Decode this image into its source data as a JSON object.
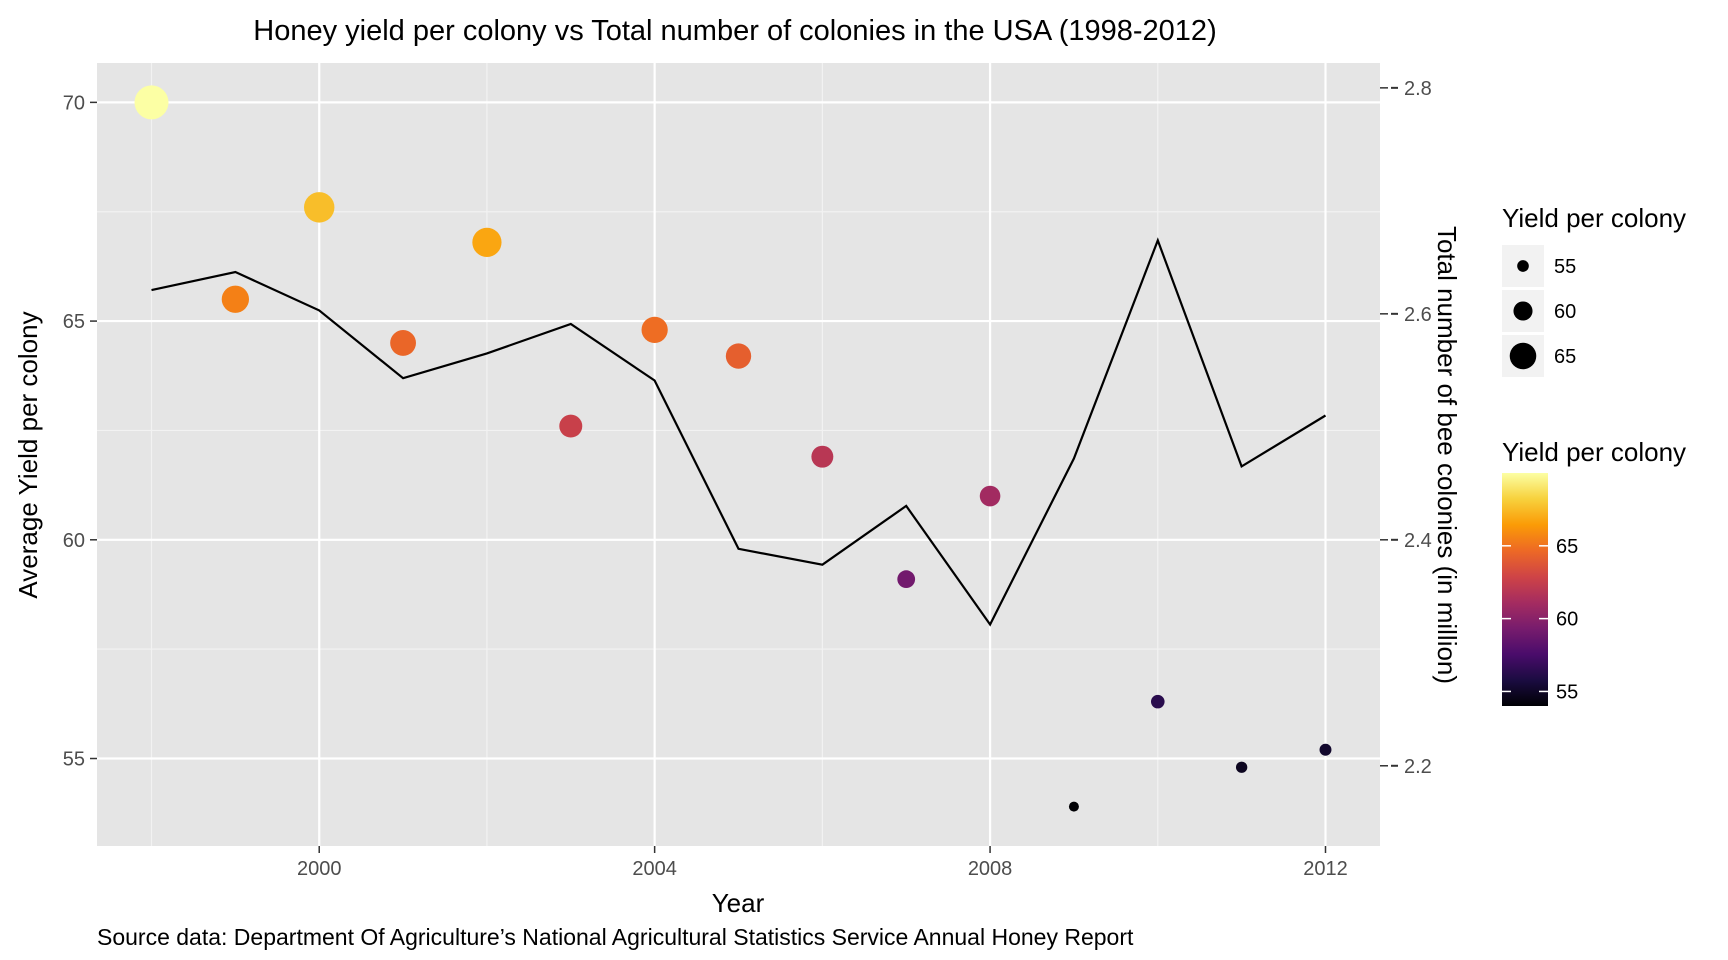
{
  "chart_data": {
    "type": "scatter",
    "title": "Honey yield per colony vs Total number of colonies in the USA (1998-2012)",
    "xlabel": "Year",
    "ylabel": "Average Yield per colony",
    "y2label": "Total number of bee colonies (in million)",
    "caption": "Source data: Department Of Agriculture’s National Agricultural Statistics Service Annual Honey Report",
    "xlim": [
      1997.35,
      2012.65
    ],
    "ylim": [
      53.0,
      70.9
    ],
    "y2lim": [
      2.129,
      2.822
    ],
    "xticks": [
      "2000",
      "2004",
      "2008",
      "2012"
    ],
    "xtick_values": [
      2000,
      2004,
      2008,
      2012
    ],
    "yticks": [
      "55",
      "60",
      "65",
      "70"
    ],
    "ytick_values": [
      55,
      60,
      65,
      70
    ],
    "y2ticks": [
      "2.2",
      "2.4",
      "2.6",
      "2.8"
    ],
    "y2tick_values": [
      2.2,
      2.4,
      2.6,
      2.8
    ],
    "years": [
      1998,
      1999,
      2000,
      2001,
      2002,
      2003,
      2004,
      2005,
      2006,
      2007,
      2008,
      2009,
      2010,
      2011,
      2012
    ],
    "yield": [
      70.0,
      65.5,
      67.6,
      64.5,
      66.8,
      62.6,
      64.8,
      64.2,
      61.9,
      59.1,
      61.0,
      53.9,
      56.3,
      54.8,
      55.2
    ],
    "colonies_million": [
      2.621,
      2.637,
      2.603,
      2.543,
      2.565,
      2.591,
      2.541,
      2.392,
      2.378,
      2.43,
      2.325,
      2.472,
      2.665,
      2.465,
      2.51
    ],
    "legend_size": {
      "title": "Yield per colony",
      "labels": [
        "55",
        "60",
        "65"
      ],
      "values": [
        55,
        60,
        65
      ]
    },
    "legend_color": {
      "title": "Yield per colony",
      "labels": [
        "65",
        "60",
        "55"
      ],
      "values": [
        65,
        60,
        55
      ],
      "range": [
        54.0,
        70.0
      ]
    },
    "colors": {
      "panel_bg": "#e5e5e5",
      "grid": "#ffffff",
      "line": "#000000",
      "scale": [
        "#000004",
        "#1b0c41",
        "#4a0c6b",
        "#781c6d",
        "#a52c60",
        "#cf4446",
        "#ed6925",
        "#fb9b06",
        "#f7d13d",
        "#fcffa4"
      ]
    }
  }
}
